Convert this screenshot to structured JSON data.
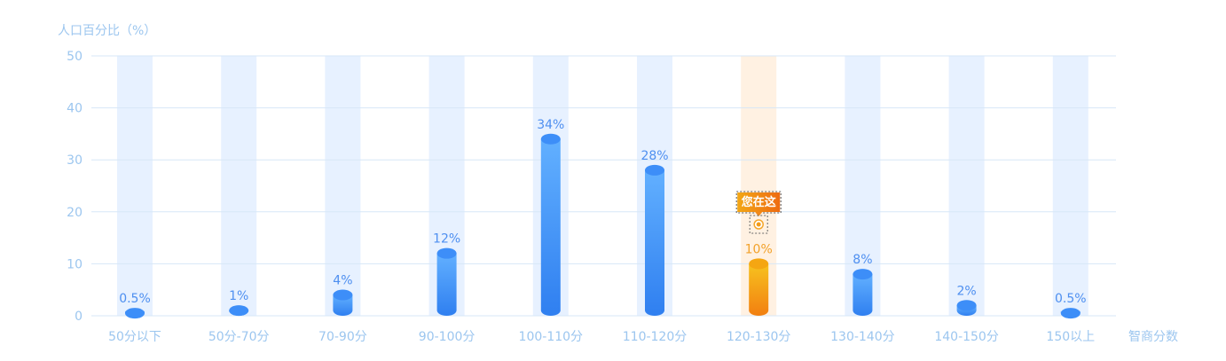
{
  "chart_data": {
    "type": "bar",
    "ylabel": "人口百分比（%）",
    "xlabel": "智商分数",
    "ylim": [
      0,
      50
    ],
    "y_ticks": [
      "0",
      "10",
      "20",
      "30",
      "40",
      "50"
    ],
    "categories": [
      "50分以下",
      "50分-70分",
      "70-90分",
      "90-100分",
      "100-110分",
      "110-120分",
      "120-130分",
      "130-140分",
      "140-150分",
      "150以上"
    ],
    "values": [
      0.5,
      1,
      4,
      12,
      34,
      28,
      10,
      8,
      2,
      0.5
    ],
    "value_labels": [
      "0.5%",
      "1%",
      "4%",
      "12%",
      "34%",
      "28%",
      "10%",
      "8%",
      "2%",
      "0.5%"
    ],
    "highlight_index": 6,
    "highlight_marker_label": "您在这",
    "grid": true,
    "colors": {
      "bar_top": "#4aa3ff",
      "bar_bottom": "#2f7ff0",
      "highlight_top": "#f6b31c",
      "highlight_bottom": "#f38a12",
      "column_band": "#e7f1ff",
      "highlight_band": "#fff1e2",
      "gridline": "#d7e7f7",
      "axis_text": "#9cc6ef",
      "label_blue": "#4e8ff0",
      "label_orange": "#f2a12a",
      "tooltip_left": "#f3a715",
      "tooltip_right": "#ee6b12"
    }
  }
}
